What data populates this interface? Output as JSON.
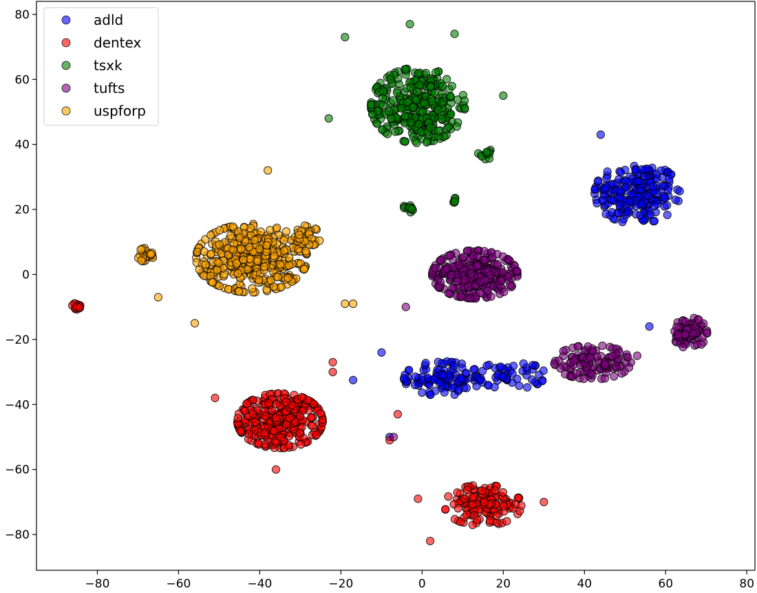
{
  "chart_data": {
    "type": "scatter",
    "title": "",
    "xlabel": "",
    "ylabel": "",
    "xlim": [
      -95,
      82
    ],
    "ylim": [
      -91,
      84
    ],
    "xticks": [
      -80,
      -60,
      -40,
      -20,
      0,
      20,
      40,
      60,
      80
    ],
    "yticks": [
      -80,
      -60,
      -40,
      -20,
      0,
      20,
      40,
      60,
      80
    ],
    "xtick_labels": [
      "−80",
      "−60",
      "−40",
      "−20",
      "0",
      "20",
      "40",
      "60",
      "80"
    ],
    "ytick_labels": [
      "−80",
      "−60",
      "−40",
      "−20",
      "0",
      "20",
      "40",
      "60",
      "80"
    ],
    "grid": false,
    "legend_position": "top-left",
    "marker_opacity": 0.6,
    "series": [
      {
        "name": "adld",
        "color": "#0000ff",
        "clusters": [
          {
            "center": [
              53,
              25
            ],
            "spread": [
              10,
              9
            ],
            "count": 220
          },
          {
            "center": [
              5,
              -32
            ],
            "spread": [
              9,
              5
            ],
            "count": 110
          },
          {
            "center": [
              22,
              -31
            ],
            "spread": [
              8,
              4
            ],
            "count": 50
          }
        ],
        "extra_points": [
          [
            -17,
            -32.5
          ],
          [
            -10,
            -24
          ],
          [
            56,
            -16
          ],
          [
            44,
            43
          ],
          [
            -8,
            -50
          ]
        ]
      },
      {
        "name": "dentex",
        "color": "#ff0000",
        "clusters": [
          {
            "center": [
              -35,
              -45
            ],
            "spread": [
              10,
              8
            ],
            "count": 300
          },
          {
            "center": [
              15,
              -71
            ],
            "spread": [
              9,
              6
            ],
            "count": 140
          },
          {
            "center": [
              -85,
              -10
            ],
            "spread": [
              1.2,
              1.2
            ],
            "count": 14
          }
        ],
        "extra_points": [
          [
            -51,
            -38
          ],
          [
            -22,
            -27
          ],
          [
            -22,
            -30
          ],
          [
            -36,
            -60
          ],
          [
            -1,
            -69
          ],
          [
            30,
            -70
          ],
          [
            2,
            -82
          ],
          [
            -8,
            -51
          ],
          [
            -6,
            -43
          ]
        ]
      },
      {
        "name": "tsxk",
        "color": "#008000",
        "clusters": [
          {
            "center": [
              -1,
              52
            ],
            "spread": [
              11,
              11
            ],
            "count": 350
          },
          {
            "center": [
              15,
              37
            ],
            "spread": [
              3,
              1.5
            ],
            "count": 12
          },
          {
            "center": [
              -3,
              20.5
            ],
            "spread": [
              1.5,
              1.3
            ],
            "count": 12
          },
          {
            "center": [
              8,
              23
            ],
            "spread": [
              0.6,
              0.8
            ],
            "count": 5
          }
        ],
        "extra_points": [
          [
            -19,
            73
          ],
          [
            -3,
            77
          ],
          [
            8,
            74
          ],
          [
            -23,
            48
          ],
          [
            20,
            55
          ]
        ]
      },
      {
        "name": "tufts",
        "color": "#800080",
        "clusters": [
          {
            "center": [
              13,
              0
            ],
            "spread": [
              10,
              7
            ],
            "count": 300
          },
          {
            "center": [
              66,
              -18
            ],
            "spread": [
              4,
              4.5
            ],
            "count": 80
          },
          {
            "center": [
              42,
              -27
            ],
            "spread": [
              9,
              5
            ],
            "count": 120
          }
        ],
        "extra_points": [
          [
            -4,
            -10
          ],
          [
            53,
            -25
          ],
          [
            -7,
            -50
          ]
        ]
      },
      {
        "name": "uspforp",
        "color": "#ffa500",
        "clusters": [
          {
            "center": [
              -42,
              5
            ],
            "spread": [
              13,
              10
            ],
            "count": 400
          },
          {
            "center": [
              -68,
              6
            ],
            "spread": [
              2,
              2
            ],
            "count": 25
          },
          {
            "center": [
              -28,
              12
            ],
            "spread": [
              3,
              3
            ],
            "count": 30
          }
        ],
        "extra_points": [
          [
            -38,
            32
          ],
          [
            -65,
            -7
          ],
          [
            -17,
            -9
          ],
          [
            -19,
            -9
          ],
          [
            -56,
            -15
          ]
        ]
      }
    ]
  },
  "legend": {
    "items": [
      "adld",
      "dentex",
      "tsxk",
      "tufts",
      "uspforp"
    ]
  }
}
